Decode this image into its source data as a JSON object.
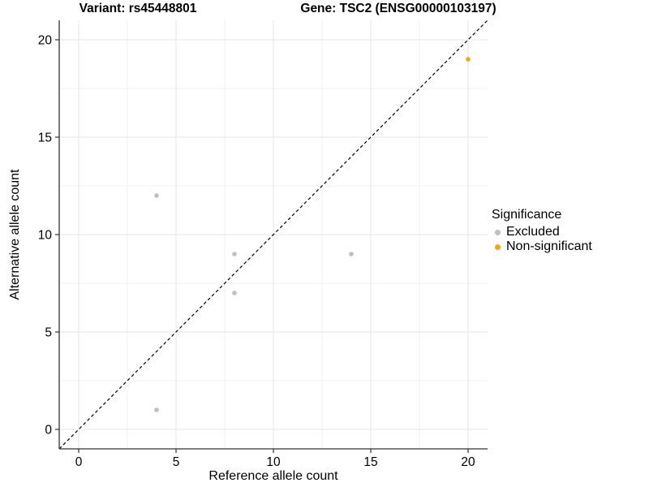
{
  "figure": {
    "title_left": "Variant: rs45448801",
    "title_right": "Gene: TSC2 (ENSG00000103197)"
  },
  "axes": {
    "x_label": "Reference allele count",
    "y_label": "Alternative allele count"
  },
  "legend": {
    "title": "Significance",
    "items": [
      {
        "label": "Excluded",
        "color": "#BEBEBE"
      },
      {
        "label": "Non-significant",
        "color": "#FFA500"
      }
    ]
  },
  "chart_data": {
    "type": "scatter",
    "title": "Variant: rs45448801 | Gene: TSC2 (ENSG00000103197)",
    "xlabel": "Reference allele count",
    "ylabel": "Alternative allele count",
    "xlim": [
      -1,
      21
    ],
    "ylim": [
      -1,
      21
    ],
    "x_ticks": [
      0,
      5,
      10,
      15,
      20
    ],
    "y_ticks": [
      0,
      5,
      10,
      15,
      20
    ],
    "minor_ticks": [
      2.5,
      7.5,
      12.5,
      17.5
    ],
    "grid": true,
    "legend_position": "right",
    "legend_title": "Significance",
    "series": [
      {
        "name": "Excluded",
        "color": "#BEBEBE",
        "points": [
          [
            4,
            12
          ],
          [
            8,
            9
          ],
          [
            8,
            7
          ],
          [
            14,
            9
          ],
          [
            4,
            1
          ]
        ]
      },
      {
        "name": "Non-significant",
        "color": "#FFA500",
        "points": [
          [
            20,
            19
          ]
        ]
      }
    ],
    "reference_line": {
      "type": "identity y=x",
      "style": "dashed",
      "color": "#000000"
    }
  },
  "style": {
    "grid_major": "#E4E4E4",
    "grid_minor": "#F2F2F2",
    "axis_line": "#333333",
    "tick_color": "#333333",
    "background": "#FFFFFF"
  }
}
